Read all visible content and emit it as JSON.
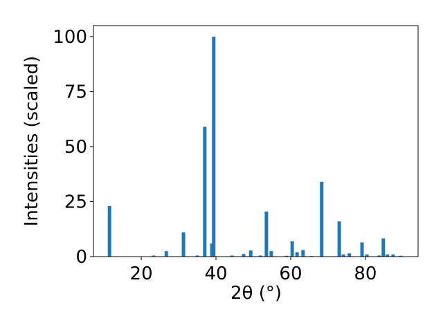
{
  "chart_data": {
    "type": "bar",
    "x_label": "2θ (°)",
    "y_label": "Intensities (scaled)",
    "color": "#1f77b4",
    "x": [
      11.5,
      23.3,
      26.7,
      31.3,
      35.0,
      37.0,
      38.9,
      39.4,
      44.3,
      47.4,
      49.3,
      51.9,
      53.5,
      54.8,
      58.9,
      60.4,
      61.7,
      63.3,
      65.6,
      68.3,
      73.0,
      74.1,
      75.7,
      79.1,
      80.4,
      83.7,
      84.8,
      85.9,
      87.4,
      89.4
    ],
    "values": [
      23,
      0.5,
      2.5,
      11,
      0.5,
      59,
      6,
      100,
      0.5,
      1.2,
      2.8,
      0.5,
      20.5,
      2.5,
      0.4,
      7,
      2,
      3,
      0.3,
      34,
      16,
      1,
      1.5,
      6.5,
      1,
      0.5,
      8.3,
      1,
      1,
      0.4
    ],
    "xlim": [
      7.2,
      94.1
    ],
    "ylim": [
      0,
      105
    ],
    "xticks": [
      20,
      40,
      60,
      80
    ],
    "yticks": [
      0,
      25,
      50,
      75,
      100
    ]
  }
}
